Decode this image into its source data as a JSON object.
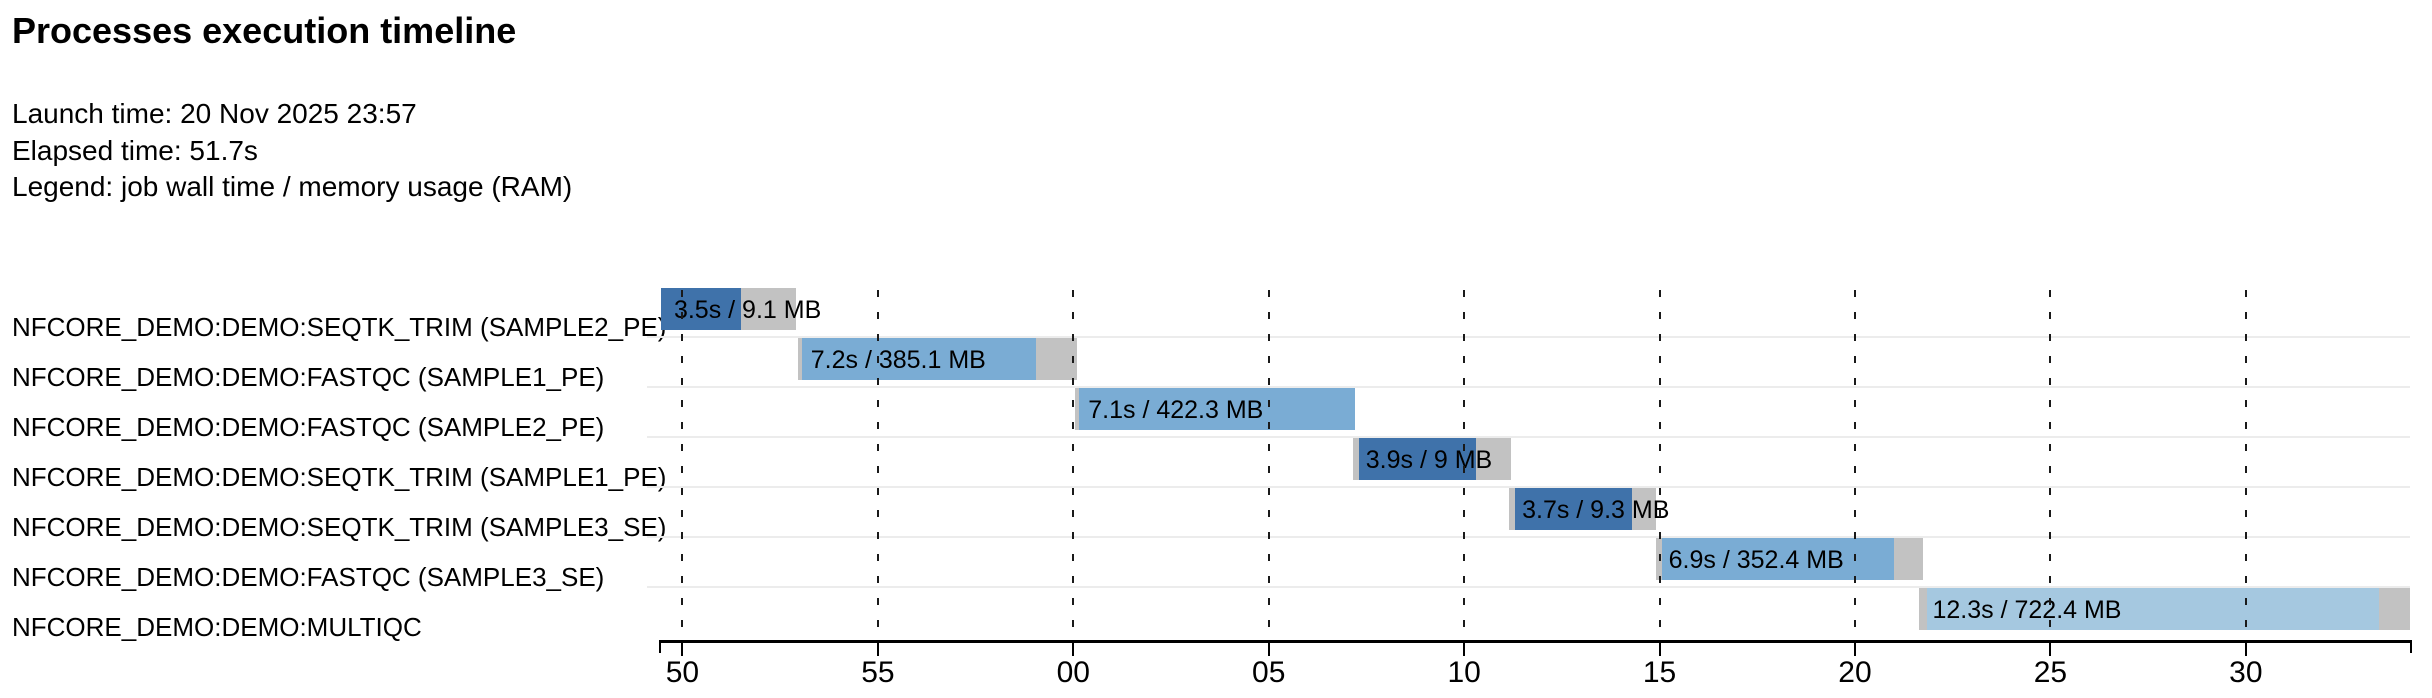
{
  "header": {
    "title": "Processes execution timeline",
    "launch_line": "Launch time: 20 Nov 2025 23:57",
    "elapsed_line": "Elapsed time: 51.7s",
    "legend_line": "Legend: job wall time / memory usage (RAM)"
  },
  "palette": {
    "dark_blue": "#3f72aa",
    "medium_blue": "#7aacd4",
    "pale_blue": "#a5c8e0",
    "gray": "#c2c2c2",
    "grid_dash": "#1a1a1a",
    "row_separator": "#ececec",
    "axis": "#000000"
  },
  "chart_data": {
    "type": "gantt_timeline",
    "title": "Processes execution timeline",
    "launch_time": "20 Nov 2025 23:57",
    "elapsed_time": "51.7s",
    "legend": "job wall time / memory usage (RAM)",
    "time_unit": "seconds (clock seconds within minutes 23:57 - 23:58)",
    "axis": {
      "domain": [
        49.4,
        94.2
      ],
      "tick_interval": 5,
      "ticks": [
        {
          "t": 50,
          "label": "50"
        },
        {
          "t": 55,
          "label": "55"
        },
        {
          "t": 60,
          "label": "00"
        },
        {
          "t": 65,
          "label": "05"
        },
        {
          "t": 70,
          "label": "10"
        },
        {
          "t": 75,
          "label": "15"
        },
        {
          "t": 80,
          "label": "20"
        },
        {
          "t": 85,
          "label": "25"
        },
        {
          "t": 90,
          "label": "30"
        }
      ]
    },
    "tasks": [
      {
        "process": "NFCORE_DEMO:DEMO:SEQTK_TRIM (SAMPLE2_PE)",
        "bar_label": "3.5s / 9.1 MB",
        "wall_time": "3.5s",
        "memory": "9.1 MB",
        "submit": 49.45,
        "run_start": 49.45,
        "run_end": 51.5,
        "complete": 52.9,
        "color": "dark_blue"
      },
      {
        "process": "NFCORE_DEMO:DEMO:FASTQC (SAMPLE1_PE)",
        "bar_label": "7.2s / 385.1 MB",
        "wall_time": "7.2s",
        "memory": "385.1 MB",
        "submit": 52.95,
        "run_start": 53.05,
        "run_end": 59.05,
        "complete": 60.1,
        "color": "medium_blue"
      },
      {
        "process": "NFCORE_DEMO:DEMO:FASTQC (SAMPLE2_PE)",
        "bar_label": "7.1s / 422.3 MB",
        "wall_time": "7.1s",
        "memory": "422.3 MB",
        "submit": 60.05,
        "run_start": 60.15,
        "run_end": 67.2,
        "complete": 67.2,
        "color": "medium_blue"
      },
      {
        "process": "NFCORE_DEMO:DEMO:SEQTK_TRIM (SAMPLE1_PE)",
        "bar_label": "3.9s / 9 MB",
        "wall_time": "3.9s",
        "memory": "9 MB",
        "submit": 67.15,
        "run_start": 67.3,
        "run_end": 70.3,
        "complete": 71.2,
        "color": "dark_blue"
      },
      {
        "process": "NFCORE_DEMO:DEMO:SEQTK_TRIM (SAMPLE3_SE)",
        "bar_label": "3.7s / 9.3 MB",
        "wall_time": "3.7s",
        "memory": "9.3 MB",
        "submit": 71.15,
        "run_start": 71.3,
        "run_end": 74.3,
        "complete": 74.9,
        "color": "dark_blue"
      },
      {
        "process": "NFCORE_DEMO:DEMO:FASTQC (SAMPLE3_SE)",
        "bar_label": "6.9s / 352.4 MB",
        "wall_time": "6.9s",
        "memory": "352.4 MB",
        "submit": 74.9,
        "run_start": 75.05,
        "run_end": 81.0,
        "complete": 81.75,
        "color": "medium_blue"
      },
      {
        "process": "NFCORE_DEMO:DEMO:MULTIQC",
        "bar_label": "12.3s / 722.4 MB",
        "wall_time": "12.3s",
        "memory": "722.4 MB",
        "submit": 81.65,
        "run_start": 81.85,
        "run_end": 93.4,
        "complete": 94.2,
        "color": "pale_blue"
      }
    ]
  }
}
